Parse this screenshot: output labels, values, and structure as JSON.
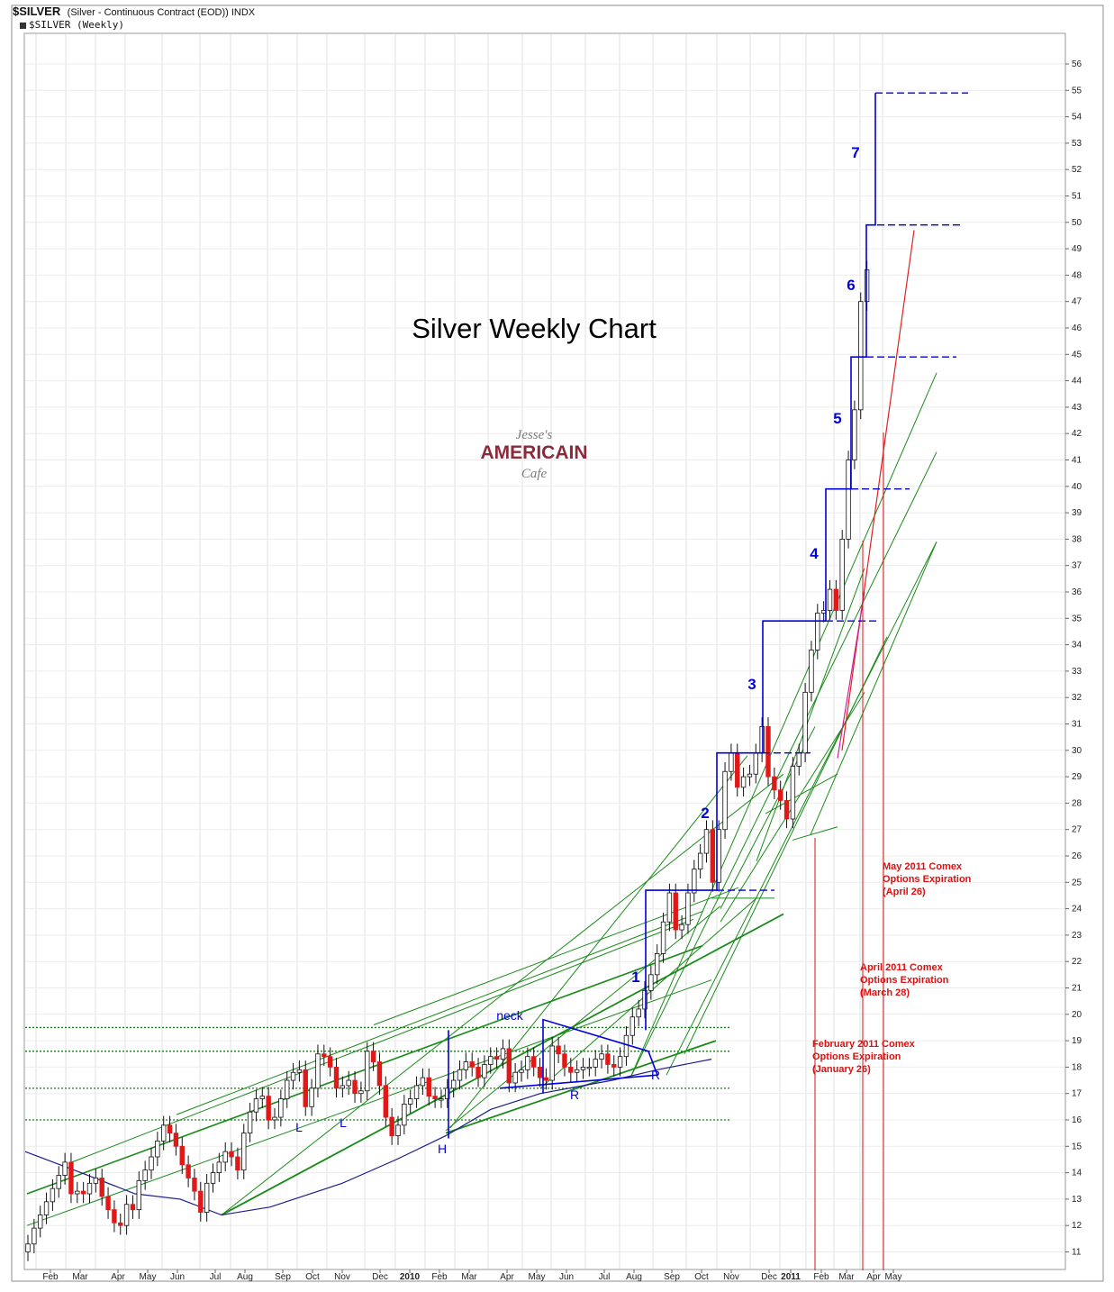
{
  "header": {
    "symbol": "$SILVER",
    "description": "(Silver - Continuous Contract (EOD)) INDX",
    "series_label": "$SILVER (Weekly)"
  },
  "chart_data": {
    "type": "candlestick",
    "title": "Silver Weekly Chart",
    "watermark_lines": [
      "Jesse's",
      "AMERICAIN",
      "Cafe"
    ],
    "y_axis": {
      "position": "right",
      "ticks": [
        11,
        12,
        13,
        14,
        15,
        16,
        17,
        18,
        19,
        20,
        21,
        22,
        23,
        24,
        25,
        26,
        27,
        28,
        29,
        30,
        31,
        32,
        33,
        34,
        35,
        36,
        37,
        38,
        39,
        40,
        41,
        42,
        43,
        44,
        45,
        46,
        47,
        48,
        49,
        50,
        51,
        52,
        53,
        54,
        55,
        56
      ]
    },
    "x_axis": {
      "ticks": [
        {
          "label": "Feb",
          "bold": false
        },
        {
          "label": "Mar",
          "bold": false
        },
        {
          "label": "Apr",
          "bold": false
        },
        {
          "label": "May",
          "bold": false
        },
        {
          "label": "Jun",
          "bold": false
        },
        {
          "label": "Jul",
          "bold": false
        },
        {
          "label": "Aug",
          "bold": false
        },
        {
          "label": "Sep",
          "bold": false
        },
        {
          "label": "Oct",
          "bold": false
        },
        {
          "label": "Nov",
          "bold": false
        },
        {
          "label": "Dec",
          "bold": false
        },
        {
          "label": "2010",
          "bold": true
        },
        {
          "label": "Feb",
          "bold": false
        },
        {
          "label": "Mar",
          "bold": false
        },
        {
          "label": "Apr",
          "bold": false
        },
        {
          "label": "May",
          "bold": false
        },
        {
          "label": "Jun",
          "bold": false
        },
        {
          "label": "Jul",
          "bold": false
        },
        {
          "label": "Aug",
          "bold": false
        },
        {
          "label": "Sep",
          "bold": false
        },
        {
          "label": "Oct",
          "bold": false
        },
        {
          "label": "Nov",
          "bold": false
        },
        {
          "label": "Dec",
          "bold": false
        },
        {
          "label": "2011",
          "bold": true
        },
        {
          "label": "Feb",
          "bold": false
        },
        {
          "label": "Mar",
          "bold": false
        },
        {
          "label": "Apr",
          "bold": false
        },
        {
          "label": "May",
          "bold": false
        }
      ]
    },
    "closes": [
      11.3,
      11.9,
      12.4,
      12.9,
      13.4,
      13.9,
      14.4,
      13.2,
      13.3,
      13.2,
      13.6,
      13.8,
      13.1,
      12.6,
      12.1,
      12.0,
      12.8,
      12.6,
      13.7,
      14.1,
      14.6,
      15.2,
      15.8,
      15.5,
      15.0,
      14.3,
      13.8,
      13.3,
      12.5,
      13.6,
      14.0,
      14.4,
      14.8,
      14.6,
      14.1,
      15.5,
      16.3,
      16.8,
      16.9,
      16.0,
      16.1,
      16.8,
      17.5,
      17.8,
      17.9,
      16.5,
      17.2,
      18.5,
      18.4,
      18.0,
      17.2,
      17.3,
      17.5,
      17.0,
      17.1,
      18.6,
      18.2,
      17.3,
      16.1,
      15.4,
      15.8,
      16.6,
      16.8,
      17.3,
      17.6,
      16.9,
      16.8,
      16.8,
      17.2,
      17.5,
      17.9,
      18.2,
      18.0,
      17.6,
      18.1,
      18.4,
      18.3,
      18.7,
      17.4,
      17.8,
      17.9,
      18.4,
      18.0,
      17.6,
      17.5,
      18.8,
      18.5,
      18.0,
      17.8,
      17.9,
      18.0,
      18.0,
      18.3,
      18.5,
      18.1,
      18.0,
      18.4,
      19.2,
      19.9,
      20.2,
      20.9,
      21.5,
      22.3,
      23.5,
      24.6,
      23.2,
      23.4,
      24.6,
      25.5,
      26.1,
      27.0,
      25.0,
      27.0,
      29.2,
      29.9,
      28.6,
      29.0,
      29.1,
      29.9,
      30.9,
      29.0,
      28.5,
      28.1,
      27.4,
      29.4,
      29.9,
      32.2,
      33.8,
      35.2,
      35.3,
      36.1,
      35.3,
      38.0,
      41.0,
      42.9,
      47.0,
      48.2
    ],
    "plotted_through": "Apr 2011",
    "annotations": {
      "pattern_labels": [
        "L",
        "L",
        "H",
        "R",
        "R",
        "neck"
      ],
      "wave_counts": [
        "1",
        "2",
        "3",
        "4",
        "5",
        "6",
        "7"
      ],
      "wave_step_levels": [
        19.4,
        24.7,
        29.9,
        34.9,
        39.9,
        44.9,
        49.9,
        54.9
      ],
      "expirations": [
        {
          "title": "May 2011 Comex",
          "sub": "Options Expiration",
          "date": "(April 26)"
        },
        {
          "title": "April 2011 Comex",
          "sub": "Options Expiration",
          "date": "(March 28)"
        },
        {
          "title": "February 2011 Comex",
          "sub": "Options Expiration",
          "date": "(January 26)"
        }
      ]
    },
    "horizontal_levels": [
      19.5,
      18.6,
      17.2,
      16.0
    ],
    "colors": {
      "up_candle": "#ffffff",
      "down_candle": "#e01818",
      "trendlines": "#1a8a1a",
      "moving_average": "#1c1c8c",
      "wave_steps": "#0000dd",
      "expirations": "#dd1111",
      "grid": "#e2e2e2"
    }
  }
}
